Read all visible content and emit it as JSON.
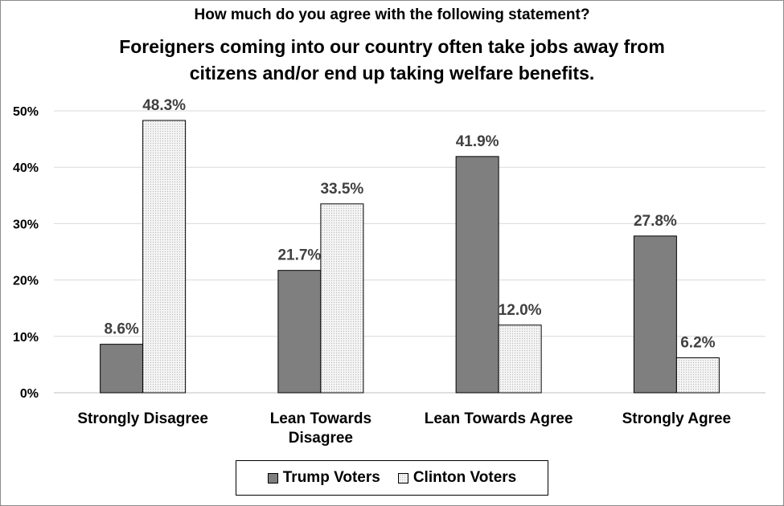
{
  "chart_data": {
    "type": "bar",
    "title": "How much do you agree with the following statement?",
    "subtitle": "Foreigners coming into our country often take jobs away from citizens and/or end up taking welfare benefits.",
    "categories": [
      "Strongly Disagree",
      "Lean Towards Disagree",
      "Lean Towards Agree",
      "Strongly Agree"
    ],
    "series": [
      {
        "name": "Trump Voters",
        "values": [
          8.6,
          21.7,
          41.9,
          27.8
        ],
        "labels": [
          "8.6%",
          "21.7%",
          "41.9%",
          "27.8%"
        ],
        "color": "#7f7f7f"
      },
      {
        "name": "Clinton Voters",
        "values": [
          48.3,
          33.5,
          12.0,
          6.2
        ],
        "labels": [
          "48.3%",
          "33.5%",
          "12.0%",
          "6.2%"
        ],
        "color": "#f2f2f2"
      }
    ],
    "yticks": [
      "0%",
      "10%",
      "20%",
      "30%",
      "40%",
      "50%"
    ],
    "ylim": [
      0,
      50
    ],
    "grid": true,
    "legend": "bottom",
    "xlabel": "",
    "ylabel": ""
  }
}
